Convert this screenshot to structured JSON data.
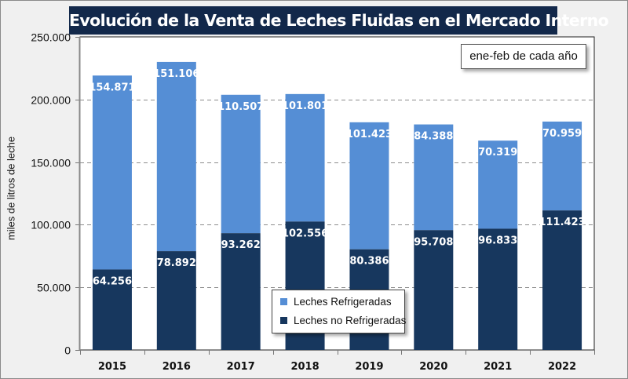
{
  "chart_data": {
    "type": "bar",
    "stacked": true,
    "title": "Evolución de la Venta de Leches Fluidas en el Mercado Interno",
    "annotation": "ene-feb de cada año",
    "xlabel": "",
    "ylabel": "miles de litros de leche",
    "ylim": [
      0,
      250000
    ],
    "yticks": [
      0,
      50000,
      100000,
      150000,
      200000,
      250000
    ],
    "ytick_labels": [
      "0",
      "50.000",
      "100.000",
      "150.000",
      "200.000",
      "250.000"
    ],
    "grid": "horizontal-dashed",
    "legend_position": "bottom-center-inside",
    "categories": [
      "2015",
      "2016",
      "2017",
      "2018",
      "2019",
      "2020",
      "2021",
      "2022"
    ],
    "series": [
      {
        "name": "Leches no Refrigeradas",
        "color": "#17375e",
        "values": [
          64256,
          78892,
          93262,
          102556,
          80386,
          95708,
          96833,
          111423
        ],
        "labels": [
          "64.256",
          "78.892",
          "93.262",
          "102.556",
          "80.386",
          "95.708",
          "96.833",
          "111.423"
        ]
      },
      {
        "name": "Leches Refrigeradas",
        "color": "#558ed5",
        "values": [
          154871,
          151106,
          110507,
          101801,
          101423,
          84388,
          70319,
          70959
        ],
        "labels": [
          "154.871",
          "151.106",
          "110.507",
          "101.801",
          "101.423",
          "84.388",
          "70.319",
          "70.959"
        ]
      }
    ],
    "legend": [
      {
        "label": "Leches Refrigeradas",
        "color": "#558ed5"
      },
      {
        "label": "Leches no Refrigeradas",
        "color": "#17375e"
      }
    ]
  }
}
